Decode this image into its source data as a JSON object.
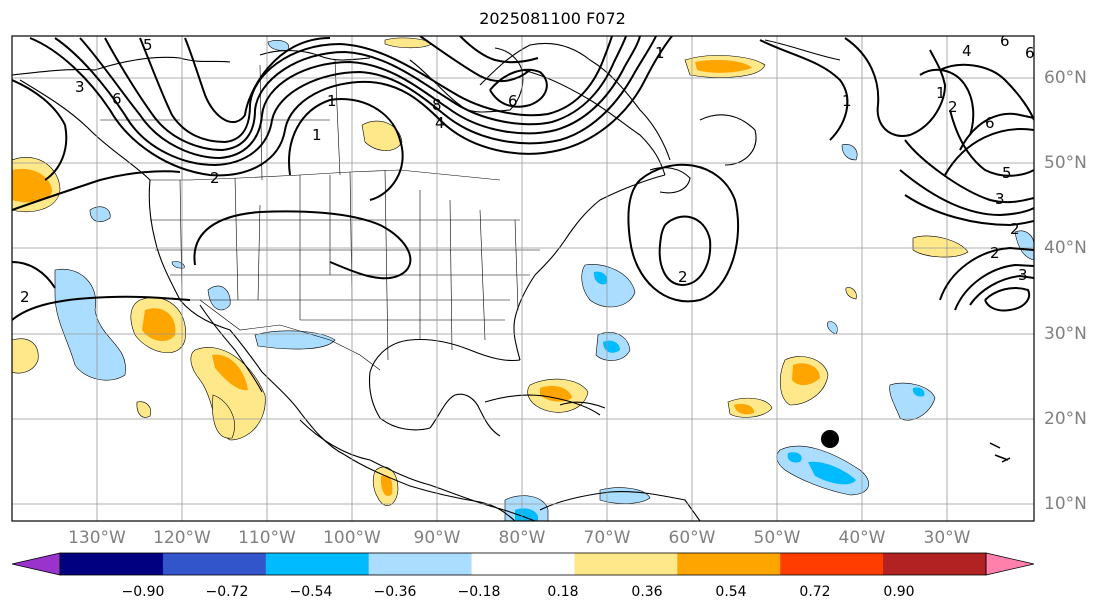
{
  "title": "2025081100 F072",
  "lon_labels": [
    "130°W",
    "120°W",
    "110°W",
    "100°W",
    "90°W",
    "80°W",
    "70°W",
    "60°W",
    "50°W",
    "40°W",
    "30°W"
  ],
  "lat_labels": [
    "60°N",
    "50°N",
    "40°N",
    "30°N",
    "20°N",
    "10°N"
  ],
  "colorbar": {
    "ticks": [
      "−0.90",
      "−0.72",
      "−0.54",
      "−0.36",
      "−0.18",
      "0.18",
      "0.36",
      "0.54",
      "0.72",
      "0.90"
    ],
    "colors": [
      "#9933cc",
      "#000080",
      "#3355cc",
      "#00bbff",
      "#aaddff",
      "#ffffff",
      "#ffe88a",
      "#ffa500",
      "#ff3d00",
      "#b22222",
      "#ff80aa"
    ]
  },
  "contour_labels": [
    "5",
    "3",
    "6",
    "1",
    "2",
    "6",
    "8",
    "4",
    "1",
    "6",
    "1",
    "4",
    "6",
    "1",
    "2",
    "5",
    "6",
    "3",
    "2",
    "3",
    "2",
    "2",
    "2",
    "1"
  ],
  "marker": "storm-position",
  "map_extent": {
    "lon": [
      -140,
      -25
    ],
    "lat": [
      8,
      65
    ]
  }
}
